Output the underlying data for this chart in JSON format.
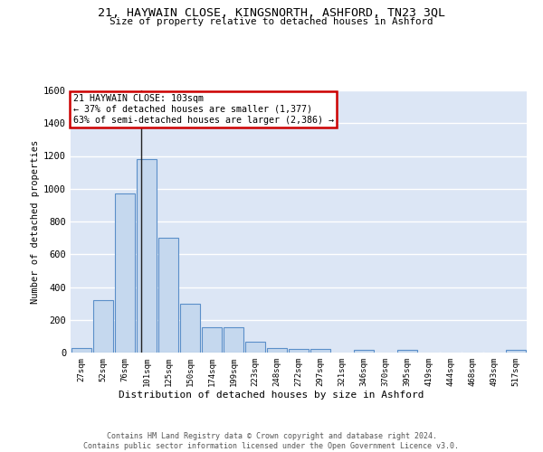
{
  "title": "21, HAYWAIN CLOSE, KINGSNORTH, ASHFORD, TN23 3QL",
  "subtitle": "Size of property relative to detached houses in Ashford",
  "xlabel": "Distribution of detached houses by size in Ashford",
  "ylabel": "Number of detached properties",
  "categories": [
    "27sqm",
    "52sqm",
    "76sqm",
    "101sqm",
    "125sqm",
    "150sqm",
    "174sqm",
    "199sqm",
    "223sqm",
    "248sqm",
    "272sqm",
    "297sqm",
    "321sqm",
    "346sqm",
    "370sqm",
    "395sqm",
    "419sqm",
    "444sqm",
    "468sqm",
    "493sqm",
    "517sqm"
  ],
  "values": [
    30,
    320,
    970,
    1180,
    700,
    300,
    155,
    155,
    65,
    25,
    20,
    20,
    0,
    15,
    0,
    15,
    0,
    0,
    0,
    0,
    15
  ],
  "bar_color": "#c5d8ee",
  "bar_edge_color": "#5b8fc9",
  "annotation_text_line1": "21 HAYWAIN CLOSE: 103sqm",
  "annotation_text_line2": "← 37% of detached houses are smaller (1,377)",
  "annotation_text_line3": "63% of semi-detached houses are larger (2,386) →",
  "annotation_box_edgecolor": "#cc0000",
  "vline_x": 2.76,
  "ylim": [
    0,
    1600
  ],
  "yticks": [
    0,
    200,
    400,
    600,
    800,
    1000,
    1200,
    1400,
    1600
  ],
  "background_color": "#dce6f5",
  "grid_color": "#ffffff",
  "footer_line1": "Contains HM Land Registry data © Crown copyright and database right 2024.",
  "footer_line2": "Contains public sector information licensed under the Open Government Licence v3.0."
}
